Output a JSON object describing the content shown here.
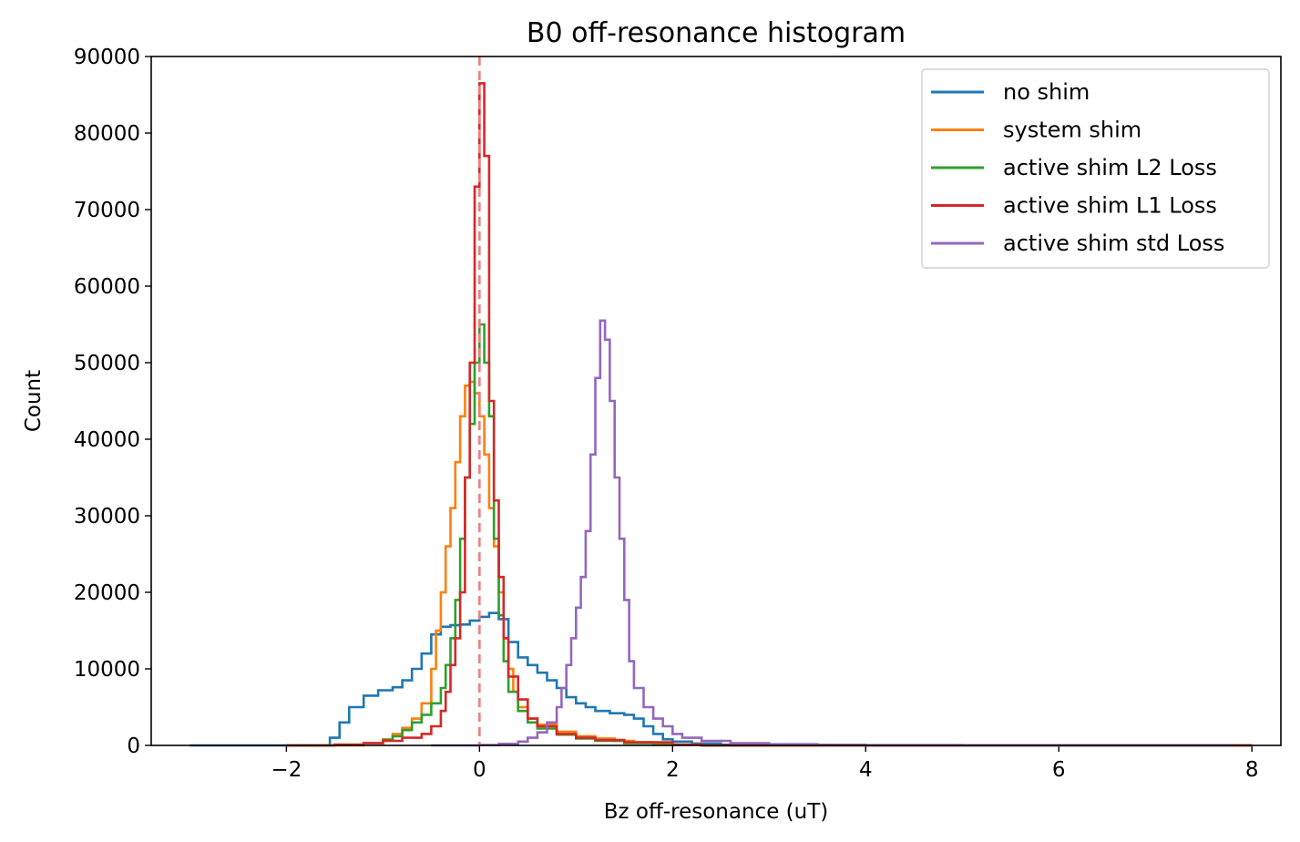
{
  "chart_data": {
    "type": "histogram",
    "title": "B0 off-resonance histogram",
    "xlabel": "Bz off-resonance (uT)",
    "ylabel": "Count",
    "xlim": [
      -3.4,
      8.3
    ],
    "ylim": [
      0,
      90000
    ],
    "xticks": [
      -2,
      0,
      2,
      4,
      6,
      8
    ],
    "xtick_labels": [
      "−2",
      "0",
      "2",
      "4",
      "6",
      "8"
    ],
    "yticks": [
      0,
      10000,
      20000,
      30000,
      40000,
      50000,
      60000,
      70000,
      80000,
      90000
    ],
    "ytick_labels": [
      "0",
      "10000",
      "20000",
      "30000",
      "40000",
      "50000",
      "60000",
      "70000",
      "80000",
      "90000"
    ],
    "grid": false,
    "legend_position": "top-right",
    "reference_line": {
      "x": 0,
      "color": "#f47c7c",
      "style": "dashed"
    },
    "series": [
      {
        "name": "no shim",
        "color": "#1f77b4",
        "points": [
          [
            -3.0,
            0
          ],
          [
            -2.0,
            0
          ],
          [
            -1.6,
            0
          ],
          [
            -1.55,
            1000
          ],
          [
            -1.45,
            3000
          ],
          [
            -1.35,
            5000
          ],
          [
            -1.2,
            6500
          ],
          [
            -1.05,
            7200
          ],
          [
            -0.9,
            7600
          ],
          [
            -0.8,
            8500
          ],
          [
            -0.7,
            10000
          ],
          [
            -0.6,
            12000
          ],
          [
            -0.5,
            14500
          ],
          [
            -0.4,
            15500
          ],
          [
            -0.3,
            15700
          ],
          [
            -0.2,
            15800
          ],
          [
            -0.1,
            16300
          ],
          [
            0.0,
            16800
          ],
          [
            0.1,
            17300
          ],
          [
            0.2,
            16500
          ],
          [
            0.3,
            13500
          ],
          [
            0.4,
            11500
          ],
          [
            0.5,
            10500
          ],
          [
            0.6,
            9500
          ],
          [
            0.7,
            8500
          ],
          [
            0.8,
            7500
          ],
          [
            0.9,
            6300
          ],
          [
            1.0,
            5500
          ],
          [
            1.1,
            5000
          ],
          [
            1.2,
            4500
          ],
          [
            1.35,
            4200
          ],
          [
            1.5,
            4000
          ],
          [
            1.6,
            3500
          ],
          [
            1.7,
            2500
          ],
          [
            1.8,
            1500
          ],
          [
            1.9,
            800
          ],
          [
            2.0,
            500
          ],
          [
            2.2,
            250
          ],
          [
            2.5,
            100
          ],
          [
            3.0,
            30
          ],
          [
            4.0,
            0
          ],
          [
            7.8,
            0
          ]
        ]
      },
      {
        "name": "system shim",
        "color": "#ff7f0e",
        "points": [
          [
            -2.0,
            0
          ],
          [
            -1.2,
            300
          ],
          [
            -1.0,
            800
          ],
          [
            -0.9,
            1500
          ],
          [
            -0.8,
            2300
          ],
          [
            -0.7,
            3500
          ],
          [
            -0.6,
            5500
          ],
          [
            -0.5,
            10000
          ],
          [
            -0.45,
            15000
          ],
          [
            -0.4,
            20000
          ],
          [
            -0.35,
            26000
          ],
          [
            -0.3,
            31000
          ],
          [
            -0.25,
            37000
          ],
          [
            -0.2,
            43000
          ],
          [
            -0.15,
            47000
          ],
          [
            -0.1,
            47500
          ],
          [
            -0.05,
            46000
          ],
          [
            0.0,
            43000
          ],
          [
            0.05,
            38000
          ],
          [
            0.1,
            31000
          ],
          [
            0.15,
            26000
          ],
          [
            0.2,
            20000
          ],
          [
            0.25,
            14000
          ],
          [
            0.3,
            10000
          ],
          [
            0.35,
            7000
          ],
          [
            0.4,
            5000
          ],
          [
            0.5,
            3500
          ],
          [
            0.6,
            2700
          ],
          [
            0.8,
            1800
          ],
          [
            1.0,
            1200
          ],
          [
            1.2,
            900
          ],
          [
            1.4,
            600
          ],
          [
            1.6,
            400
          ],
          [
            1.8,
            200
          ],
          [
            2.0,
            100
          ],
          [
            2.3,
            0
          ],
          [
            8.0,
            0
          ]
        ]
      },
      {
        "name": "active shim L2 Loss",
        "color": "#2ca02c",
        "points": [
          [
            -2.0,
            0
          ],
          [
            -1.5,
            100
          ],
          [
            -1.2,
            300
          ],
          [
            -1.0,
            700
          ],
          [
            -0.9,
            1200
          ],
          [
            -0.8,
            2000
          ],
          [
            -0.7,
            3000
          ],
          [
            -0.6,
            4000
          ],
          [
            -0.5,
            5500
          ],
          [
            -0.4,
            7500
          ],
          [
            -0.35,
            10500
          ],
          [
            -0.3,
            14000
          ],
          [
            -0.25,
            19000
          ],
          [
            -0.2,
            27000
          ],
          [
            -0.15,
            35000
          ],
          [
            -0.1,
            42000
          ],
          [
            -0.05,
            50000
          ],
          [
            0.0,
            55000
          ],
          [
            0.05,
            50000
          ],
          [
            0.1,
            43000
          ],
          [
            0.15,
            27000
          ],
          [
            0.2,
            17000
          ],
          [
            0.25,
            11000
          ],
          [
            0.3,
            7000
          ],
          [
            0.4,
            4500
          ],
          [
            0.5,
            3000
          ],
          [
            0.6,
            2200
          ],
          [
            0.8,
            1400
          ],
          [
            1.0,
            900
          ],
          [
            1.2,
            600
          ],
          [
            1.5,
            300
          ],
          [
            2.0,
            100
          ],
          [
            2.3,
            0
          ],
          [
            8.0,
            0
          ]
        ]
      },
      {
        "name": "active shim L1 Loss",
        "color": "#d62728",
        "points": [
          [
            -2.0,
            0
          ],
          [
            -1.5,
            100
          ],
          [
            -1.2,
            300
          ],
          [
            -1.0,
            600
          ],
          [
            -0.8,
            1000
          ],
          [
            -0.6,
            1500
          ],
          [
            -0.5,
            2500
          ],
          [
            -0.4,
            4500
          ],
          [
            -0.35,
            7000
          ],
          [
            -0.3,
            10500
          ],
          [
            -0.25,
            14000
          ],
          [
            -0.2,
            20000
          ],
          [
            -0.15,
            35000
          ],
          [
            -0.1,
            50000
          ],
          [
            -0.05,
            73000
          ],
          [
            0.0,
            86500
          ],
          [
            0.05,
            77000
          ],
          [
            0.1,
            45000
          ],
          [
            0.15,
            32000
          ],
          [
            0.2,
            22000
          ],
          [
            0.25,
            14000
          ],
          [
            0.3,
            9000
          ],
          [
            0.4,
            6000
          ],
          [
            0.5,
            3500
          ],
          [
            0.6,
            2500
          ],
          [
            0.8,
            1500
          ],
          [
            1.0,
            1000
          ],
          [
            1.2,
            700
          ],
          [
            1.5,
            400
          ],
          [
            2.0,
            100
          ],
          [
            2.3,
            0
          ],
          [
            8.0,
            0
          ]
        ]
      },
      {
        "name": "active shim std Loss",
        "color": "#9467bd",
        "points": [
          [
            -0.5,
            0
          ],
          [
            0.0,
            50
          ],
          [
            0.2,
            200
          ],
          [
            0.4,
            500
          ],
          [
            0.5,
            1000
          ],
          [
            0.6,
            1700
          ],
          [
            0.7,
            3000
          ],
          [
            0.8,
            5000
          ],
          [
            0.85,
            7500
          ],
          [
            0.9,
            10500
          ],
          [
            0.95,
            14000
          ],
          [
            1.0,
            18000
          ],
          [
            1.05,
            22000
          ],
          [
            1.1,
            28000
          ],
          [
            1.15,
            38000
          ],
          [
            1.2,
            48000
          ],
          [
            1.25,
            55500
          ],
          [
            1.3,
            53000
          ],
          [
            1.35,
            45000
          ],
          [
            1.4,
            35000
          ],
          [
            1.45,
            27000
          ],
          [
            1.5,
            19000
          ],
          [
            1.55,
            11000
          ],
          [
            1.6,
            7500
          ],
          [
            1.7,
            5000
          ],
          [
            1.8,
            3500
          ],
          [
            1.9,
            2500
          ],
          [
            2.0,
            1500
          ],
          [
            2.1,
            1000
          ],
          [
            2.3,
            600
          ],
          [
            2.6,
            300
          ],
          [
            3.0,
            150
          ],
          [
            3.5,
            80
          ],
          [
            4.0,
            30
          ],
          [
            5.0,
            10
          ],
          [
            6.0,
            5
          ],
          [
            7.8,
            0
          ]
        ]
      }
    ]
  }
}
